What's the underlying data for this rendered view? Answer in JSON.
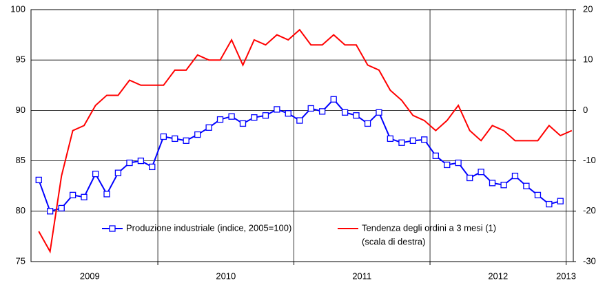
{
  "chart_data": {
    "type": "line",
    "x": [
      2009.125,
      2009.208,
      2009.292,
      2009.375,
      2009.458,
      2009.542,
      2009.625,
      2009.708,
      2009.792,
      2009.875,
      2009.958,
      2010.042,
      2010.125,
      2010.208,
      2010.292,
      2010.375,
      2010.458,
      2010.542,
      2010.625,
      2010.708,
      2010.792,
      2010.875,
      2010.958,
      2011.042,
      2011.125,
      2011.208,
      2011.292,
      2011.375,
      2011.458,
      2011.542,
      2011.625,
      2011.708,
      2011.792,
      2011.875,
      2011.958,
      2012.042,
      2012.125,
      2012.208,
      2012.292,
      2012.375,
      2012.458,
      2012.542,
      2012.625,
      2012.708,
      2012.792,
      2012.875,
      2012.958,
      2013.042
    ],
    "xlim": [
      2009.068,
      2013.053
    ],
    "xticks": [
      2010,
      2011,
      2012,
      2013
    ],
    "x_labels": [
      {
        "value": 2009.5,
        "label": "2009"
      },
      {
        "value": 2010.5,
        "label": "2010"
      },
      {
        "value": 2011.5,
        "label": "2011"
      },
      {
        "value": 2012.5,
        "label": "2012"
      },
      2013
    ],
    "ylim": [
      75,
      100
    ],
    "yticks": [
      75,
      80,
      85,
      90,
      95,
      100
    ],
    "y2lim": [
      -30,
      20
    ],
    "y2ticks": [
      -30,
      -20,
      -10,
      0,
      10,
      20
    ],
    "grid": true,
    "series": [
      {
        "name": "Produzione industriale (indice, 2005=100)",
        "color": "#0000ff",
        "marker": "square",
        "values": [
          83.1,
          80.0,
          80.3,
          81.6,
          81.4,
          83.7,
          81.7,
          83.8,
          84.8,
          85.0,
          84.4,
          87.4,
          87.2,
          87.0,
          87.6,
          88.3,
          89.1,
          89.4,
          88.7,
          89.3,
          89.5,
          90.1,
          89.7,
          89.0,
          90.2,
          89.9,
          91.1,
          89.8,
          89.5,
          88.7,
          89.8,
          87.2,
          86.8,
          87.0,
          87.1,
          85.5,
          84.6,
          84.8,
          83.3,
          83.9,
          82.8,
          82.6,
          83.5,
          82.5,
          81.6,
          80.7,
          81.0,
          null
        ]
      },
      {
        "name": "Tendenza degli ordini a 3 mesi (1)",
        "note": "(scala di destra)",
        "color": "#ff0000",
        "axis": "y2",
        "values": [
          -24,
          -28,
          -13,
          -4,
          -3,
          1,
          3,
          3,
          6,
          5,
          5,
          5,
          8,
          8,
          11,
          10,
          10,
          14,
          9,
          14,
          13,
          15,
          14,
          16,
          13,
          13,
          15,
          13,
          13,
          9,
          8,
          4,
          2,
          -1,
          -2,
          -4,
          -2,
          1,
          -4,
          -6,
          -3,
          -4,
          -6,
          -6,
          -6,
          -3,
          -5,
          -4
        ]
      }
    ]
  }
}
